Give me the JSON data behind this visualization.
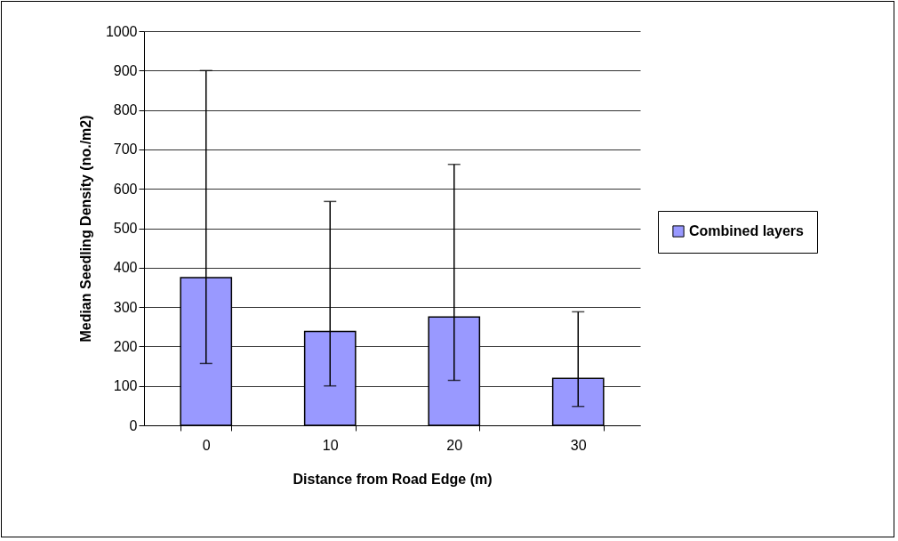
{
  "chart_data": {
    "type": "bar",
    "xlabel": "Distance from Road Edge (m)",
    "ylabel": "Median Seedling Density (no./m2)",
    "categories": [
      "0",
      "10",
      "20",
      "30"
    ],
    "series": [
      {
        "name": "Combined layers",
        "color": "#9999ff",
        "values": [
          375,
          238,
          275,
          119
        ],
        "errors": [
          [
            157,
            900
          ],
          [
            100,
            568
          ],
          [
            114,
            662
          ],
          [
            48,
            288
          ]
        ]
      }
    ],
    "ylim": [
      0,
      1000
    ],
    "yticks": [
      0,
      100,
      200,
      300,
      400,
      500,
      600,
      700,
      800,
      900,
      1000
    ],
    "grid": "y",
    "legend": "right"
  }
}
